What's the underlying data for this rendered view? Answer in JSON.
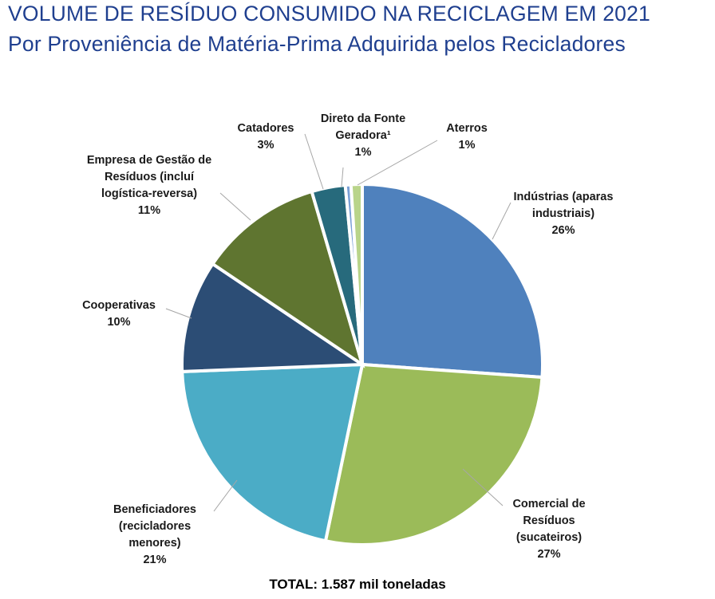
{
  "header": {
    "title": "VOLUME DE RESÍDUO CONSUMIDO NA RECICLAGEM EM 2021",
    "subtitle": "Por Proveniência de Matéria-Prima Adquirida pelos Recicladores"
  },
  "footer": {
    "total": "TOTAL: 1.587 mil toneladas"
  },
  "chart_data": {
    "type": "pie",
    "title": "VOLUME DE RESÍDUO CONSUMIDO NA RECICLAGEM EM 2021",
    "subtitle": "Por Proveniência de Matéria-Prima Adquirida pelos Recicladores",
    "unit": "%",
    "start_angle": "12 o'clock, clockwise",
    "slices": [
      {
        "name": "Indústrias (aparas industriais)",
        "label_lines": [
          "Indústrias (aparas",
          "industriais)"
        ],
        "value": 26,
        "value_label": "26%",
        "color": "#4f81bd"
      },
      {
        "name": "Comercial de Resíduos (sucateiros)",
        "label_lines": [
          "Comercial de",
          "Resíduos",
          "(sucateiros)"
        ],
        "value": 27,
        "value_label": "27%",
        "color": "#9bbb59"
      },
      {
        "name": "Beneficiadores (recicladores menores)",
        "label_lines": [
          "Beneficiadores",
          "(recicladores",
          "menores)"
        ],
        "value": 21,
        "value_label": "21%",
        "color": "#4bacc6"
      },
      {
        "name": "Cooperativas",
        "label_lines": [
          "Cooperativas"
        ],
        "value": 10,
        "value_label": "10%",
        "color": "#2c4d75"
      },
      {
        "name": "Empresa de Gestão de Resíduos (incluí logística-reversa)",
        "label_lines": [
          "Empresa de Gestão de",
          "Resíduos (incluí",
          "logística-reversa)"
        ],
        "value": 11,
        "value_label": "11%",
        "color": "#5f7530"
      },
      {
        "name": "Catadores",
        "label_lines": [
          "Catadores"
        ],
        "value": 3,
        "value_label": "3%",
        "color": "#276a7c"
      },
      {
        "name": "Direto da Fonte Geradora¹",
        "label_lines": [
          "Direto da Fonte",
          "Geradora¹"
        ],
        "value": 0.5,
        "value_label": "1%",
        "color": "#7aa0d6"
      },
      {
        "name": "Aterros",
        "label_lines": [
          "Aterros"
        ],
        "value": 1,
        "value_label": "1%",
        "color": "#b9d48a"
      }
    ]
  }
}
